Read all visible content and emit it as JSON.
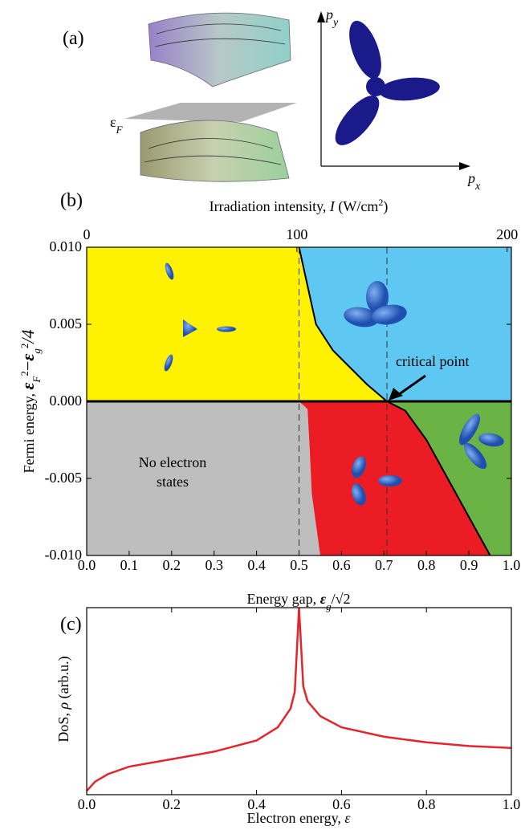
{
  "panel_a": {
    "label": "(a)",
    "fermi_label": [
      "ε",
      "F"
    ],
    "py_label": [
      "p",
      "y"
    ],
    "px_label": [
      "p",
      "x"
    ]
  },
  "chart_data": [
    {
      "type": "area",
      "panel_label": "(b)",
      "x2label": [
        "Irradiation intensity, ",
        "I",
        " (W/cm",
        "2",
        ")"
      ],
      "xlabel": [
        "Energy gap, ",
        "ε",
        "g",
        "/√2"
      ],
      "ylabel": [
        "Fermi energy, ",
        "ε",
        "F",
        "2",
        "−",
        "ε",
        "g",
        "2",
        "/4"
      ],
      "xlim": [
        0,
        1
      ],
      "ylim": [
        -0.01,
        0.01
      ],
      "x2lim": [
        0,
        202
      ],
      "xticks": [
        {
          "value": 0,
          "label": "0.0"
        },
        0.1,
        0.2,
        0.3,
        0.4,
        0.5,
        0.6,
        0.7,
        0.8,
        0.9,
        {
          "value": 1,
          "label": "1.0"
        }
      ],
      "yticks": [
        {
          "value": -0.01,
          "label": "-0.010"
        },
        {
          "value": -0.005,
          "label": "-0.005"
        },
        {
          "value": 0,
          "label": "0.000"
        },
        {
          "value": 0.005,
          "label": "0.005"
        },
        {
          "value": 0.01,
          "label": "0.010"
        }
      ],
      "x2ticks": [
        0,
        100,
        200
      ],
      "fill_colors": {
        "upper_left": "#fff200",
        "upper_right": "#5ec8f2",
        "lower_left": "#bebebe",
        "lower_middle": "#ec1c24",
        "lower_right": "#6ab344"
      },
      "boundaries": {
        "upper": {
          "x": [
            0.5,
            0.52,
            0.54,
            0.58,
            0.62,
            0.66,
            0.707
          ],
          "values": [
            0.01,
            0.0075,
            0.005,
            0.0033,
            0.0022,
            0.0011,
            0
          ]
        },
        "lower": {
          "x": [
            0.707,
            0.75,
            0.8,
            0.85,
            0.9,
            0.95
          ],
          "values": [
            0,
            -0.0006,
            -0.0025,
            -0.005,
            -0.0075,
            -0.01
          ]
        },
        "gray": {
          "x": [
            0.5,
            0.52,
            0.525,
            0.53,
            0.55
          ],
          "values": [
            0,
            -0.0005,
            -0.003,
            -0.006,
            -0.01
          ]
        }
      },
      "dashed_x": [
        0.5,
        0.707
      ],
      "annotations": {
        "critical_point": "critical point",
        "no_states": [
          "No electron",
          "states"
        ]
      }
    },
    {
      "type": "line",
      "panel_label": "(c)",
      "xlabel": [
        "Electron energy, ",
        "ε"
      ],
      "ylabel": [
        "DoS, ",
        "ρ",
        " (arb.u.)"
      ],
      "xlim": [
        0,
        1
      ],
      "ylim": [
        0,
        1
      ],
      "xticks": [
        {
          "value": 0,
          "label": "0.0"
        },
        0.2,
        0.4,
        0.6,
        0.8,
        {
          "value": 1,
          "label": "1.0"
        }
      ],
      "color": "#e3262d",
      "x": [
        0,
        0.02,
        0.05,
        0.1,
        0.2,
        0.3,
        0.4,
        0.45,
        0.48,
        0.49,
        0.5,
        0.51,
        0.52,
        0.55,
        0.6,
        0.7,
        0.8,
        0.9,
        1.0
      ],
      "values": [
        0.02,
        0.07,
        0.11,
        0.15,
        0.19,
        0.23,
        0.29,
        0.36,
        0.46,
        0.55,
        1.0,
        0.58,
        0.5,
        0.42,
        0.36,
        0.31,
        0.28,
        0.26,
        0.25
      ]
    }
  ]
}
